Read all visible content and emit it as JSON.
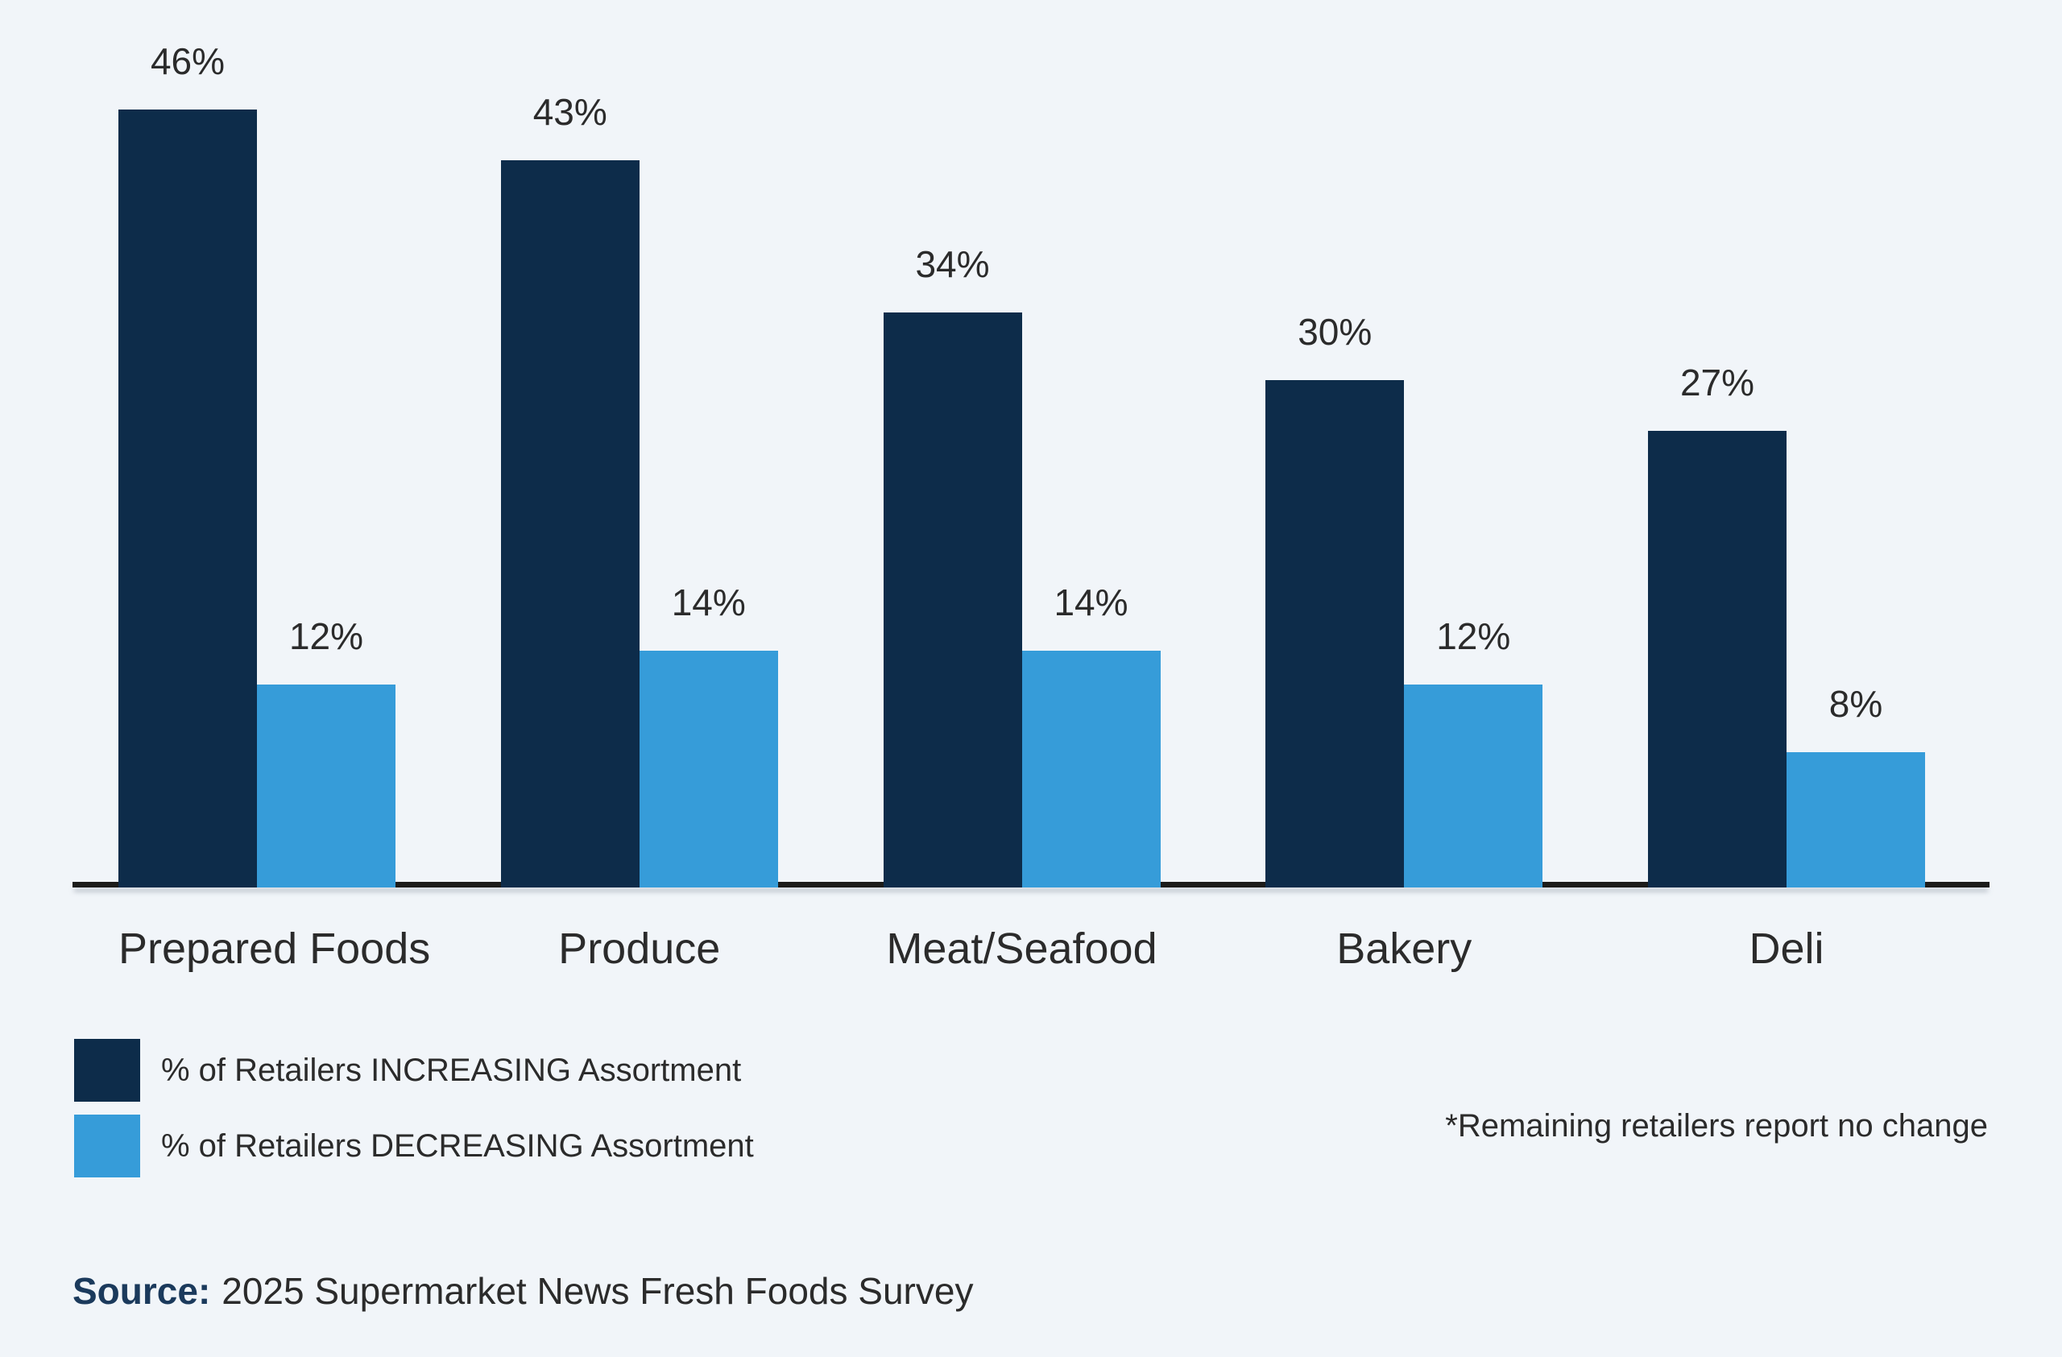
{
  "chart_data": {
    "type": "bar",
    "categories": [
      "Prepared Foods",
      "Produce",
      "Meat/Seafood",
      "Bakery",
      "Deli"
    ],
    "series": [
      {
        "name": "% of Retailers INCREASING Assortment",
        "color": "#0d2c4a",
        "values": [
          46,
          43,
          34,
          30,
          27
        ]
      },
      {
        "name": "% of Retailers DECREASING Assortment",
        "color": "#369cd9",
        "values": [
          12,
          14,
          14,
          12,
          8
        ]
      }
    ],
    "value_suffix": "%",
    "title": "",
    "xlabel": "",
    "ylabel": "",
    "ylim": [
      0,
      52
    ],
    "grid": false,
    "axis_line": "bottom-only",
    "legend_position": "bottom-left",
    "data_labels": "above-bars"
  },
  "note": "*Remaining retailers report no change",
  "source": {
    "label": "Source:",
    "text": "2025 Supermarket News Fresh Foods Survey"
  },
  "colors": {
    "background": "#f1f5f9",
    "axis": "#1c1c1a",
    "text": "#2b2b2b",
    "increasing_bar": "#0d2c4a",
    "decreasing_bar": "#369cd9",
    "source_label": "#1b3a5c"
  }
}
